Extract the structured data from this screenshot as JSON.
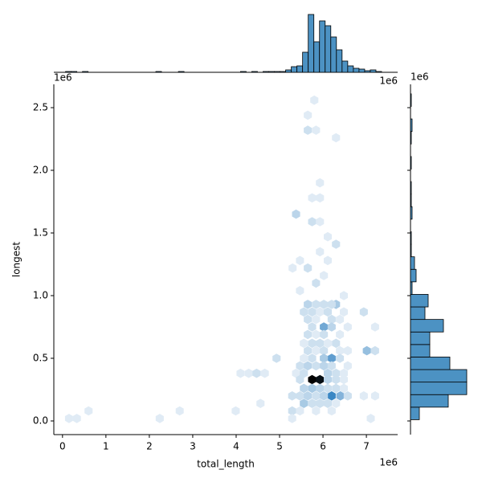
{
  "chart_data": {
    "type": "hexbin",
    "xlabel": "total_length",
    "ylabel": "longest",
    "x_offset": "1e6",
    "y_offset": "1e6",
    "top_offset": "1e6",
    "right_offset": "1e6",
    "xlim": [
      -0.2,
      7.72
    ],
    "ylim": [
      -0.109,
      2.686
    ],
    "xticks": [
      0,
      1,
      2,
      3,
      4,
      5,
      6,
      7
    ],
    "yticks": [
      {
        "value": 0,
        "label": "0.0"
      },
      {
        "value": 0.5,
        "label": "0.5"
      },
      {
        "value": 1.0,
        "label": "1.0"
      },
      {
        "value": 1.5,
        "label": "1.5"
      },
      {
        "value": 2.0,
        "label": "2.0"
      },
      {
        "value": 2.5,
        "label": "2.5"
      }
    ],
    "color": "#4c92c3",
    "cmap": [
      "#f2f6fa",
      "#3a87c4",
      "#000000"
    ],
    "count_max": 20,
    "hexes": [
      {
        "x": 5.75,
        "y": 0.33,
        "count": 20
      },
      {
        "x": 5.93,
        "y": 0.33,
        "count": 19
      },
      {
        "x": 6.2,
        "y": 0.2,
        "count": 10
      },
      {
        "x": 6.4,
        "y": 0.2,
        "count": 6
      },
      {
        "x": 6.2,
        "y": 0.5,
        "count": 8
      },
      {
        "x": 6.02,
        "y": 0.75,
        "count": 7
      },
      {
        "x": 6.3,
        "y": 0.93,
        "count": 4
      },
      {
        "x": 5.65,
        "y": 0.93,
        "count": 3
      },
      {
        "x": 5.84,
        "y": 0.93,
        "count": 2
      },
      {
        "x": 6.02,
        "y": 0.93,
        "count": 2
      },
      {
        "x": 6.2,
        "y": 0.93,
        "count": 2
      },
      {
        "x": 5.56,
        "y": 0.87,
        "count": 2
      },
      {
        "x": 5.75,
        "y": 0.87,
        "count": 2
      },
      {
        "x": 5.93,
        "y": 0.87,
        "count": 1
      },
      {
        "x": 6.11,
        "y": 0.87,
        "count": 2
      },
      {
        "x": 6.48,
        "y": 0.87,
        "count": 1
      },
      {
        "x": 5.65,
        "y": 0.81,
        "count": 2
      },
      {
        "x": 5.84,
        "y": 0.81,
        "count": 1
      },
      {
        "x": 6.2,
        "y": 0.81,
        "count": 2
      },
      {
        "x": 6.39,
        "y": 0.81,
        "count": 1
      },
      {
        "x": 5.75,
        "y": 0.75,
        "count": 2
      },
      {
        "x": 6.2,
        "y": 0.75,
        "count": 3
      },
      {
        "x": 6.57,
        "y": 0.75,
        "count": 1
      },
      {
        "x": 5.65,
        "y": 0.69,
        "count": 2
      },
      {
        "x": 5.84,
        "y": 0.69,
        "count": 1
      },
      {
        "x": 6.02,
        "y": 0.69,
        "count": 2
      },
      {
        "x": 6.39,
        "y": 0.69,
        "count": 1
      },
      {
        "x": 5.56,
        "y": 0.62,
        "count": 1
      },
      {
        "x": 5.75,
        "y": 0.62,
        "count": 2
      },
      {
        "x": 5.93,
        "y": 0.62,
        "count": 2
      },
      {
        "x": 6.11,
        "y": 0.62,
        "count": 1
      },
      {
        "x": 6.3,
        "y": 0.62,
        "count": 2
      },
      {
        "x": 5.65,
        "y": 0.56,
        "count": 2
      },
      {
        "x": 5.84,
        "y": 0.56,
        "count": 1
      },
      {
        "x": 6.02,
        "y": 0.56,
        "count": 2
      },
      {
        "x": 6.39,
        "y": 0.56,
        "count": 1
      },
      {
        "x": 6.57,
        "y": 0.56,
        "count": 1
      },
      {
        "x": 5.56,
        "y": 0.5,
        "count": 1
      },
      {
        "x": 5.75,
        "y": 0.5,
        "count": 2
      },
      {
        "x": 6.02,
        "y": 0.5,
        "count": 4
      },
      {
        "x": 6.39,
        "y": 0.5,
        "count": 2
      },
      {
        "x": 4.93,
        "y": 0.5,
        "count": 2
      },
      {
        "x": 5.47,
        "y": 0.44,
        "count": 2
      },
      {
        "x": 5.65,
        "y": 0.44,
        "count": 3
      },
      {
        "x": 5.84,
        "y": 0.44,
        "count": 2
      },
      {
        "x": 6.02,
        "y": 0.44,
        "count": 3
      },
      {
        "x": 6.2,
        "y": 0.44,
        "count": 2
      },
      {
        "x": 6.57,
        "y": 0.44,
        "count": 1
      },
      {
        "x": 5.38,
        "y": 0.38,
        "count": 1
      },
      {
        "x": 5.56,
        "y": 0.38,
        "count": 2
      },
      {
        "x": 6.11,
        "y": 0.38,
        "count": 3
      },
      {
        "x": 6.3,
        "y": 0.38,
        "count": 2
      },
      {
        "x": 6.48,
        "y": 0.38,
        "count": 1
      },
      {
        "x": 5.47,
        "y": 0.33,
        "count": 2
      },
      {
        "x": 6.11,
        "y": 0.33,
        "count": 3
      },
      {
        "x": 6.3,
        "y": 0.33,
        "count": 2
      },
      {
        "x": 6.48,
        "y": 0.33,
        "count": 1
      },
      {
        "x": 5.56,
        "y": 0.26,
        "count": 3
      },
      {
        "x": 5.75,
        "y": 0.26,
        "count": 4
      },
      {
        "x": 5.93,
        "y": 0.26,
        "count": 3
      },
      {
        "x": 6.11,
        "y": 0.26,
        "count": 2
      },
      {
        "x": 6.3,
        "y": 0.26,
        "count": 2
      },
      {
        "x": 6.48,
        "y": 0.26,
        "count": 1
      },
      {
        "x": 5.29,
        "y": 0.2,
        "count": 2
      },
      {
        "x": 5.47,
        "y": 0.2,
        "count": 2
      },
      {
        "x": 5.65,
        "y": 0.2,
        "count": 3
      },
      {
        "x": 5.84,
        "y": 0.2,
        "count": 2
      },
      {
        "x": 6.02,
        "y": 0.2,
        "count": 3
      },
      {
        "x": 6.57,
        "y": 0.2,
        "count": 2
      },
      {
        "x": 6.94,
        "y": 0.2,
        "count": 1
      },
      {
        "x": 7.2,
        "y": 0.2,
        "count": 1
      },
      {
        "x": 5.56,
        "y": 0.14,
        "count": 4
      },
      {
        "x": 5.75,
        "y": 0.14,
        "count": 2
      },
      {
        "x": 5.93,
        "y": 0.14,
        "count": 2
      },
      {
        "x": 6.11,
        "y": 0.14,
        "count": 2
      },
      {
        "x": 6.3,
        "y": 0.14,
        "count": 1
      },
      {
        "x": 4.56,
        "y": 0.14,
        "count": 1
      },
      {
        "x": 5.29,
        "y": 0.08,
        "count": 2
      },
      {
        "x": 5.47,
        "y": 0.08,
        "count": 1
      },
      {
        "x": 5.84,
        "y": 0.08,
        "count": 1
      },
      {
        "x": 6.2,
        "y": 0.08,
        "count": 1
      },
      {
        "x": 3.99,
        "y": 0.08,
        "count": 1
      },
      {
        "x": 2.7,
        "y": 0.08,
        "count": 1
      },
      {
        "x": 0.6,
        "y": 0.08,
        "count": 1
      },
      {
        "x": 5.29,
        "y": 0.02,
        "count": 1
      },
      {
        "x": 7.1,
        "y": 0.02,
        "count": 1
      },
      {
        "x": 2.24,
        "y": 0.02,
        "count": 1
      },
      {
        "x": 0.15,
        "y": 0.02,
        "count": 1
      },
      {
        "x": 0.33,
        "y": 0.02,
        "count": 1
      },
      {
        "x": 4.1,
        "y": 0.38,
        "count": 1
      },
      {
        "x": 4.29,
        "y": 0.38,
        "count": 1
      },
      {
        "x": 4.47,
        "y": 0.38,
        "count": 2
      },
      {
        "x": 4.66,
        "y": 0.38,
        "count": 1
      },
      {
        "x": 7.01,
        "y": 0.56,
        "count": 5
      },
      {
        "x": 7.2,
        "y": 0.56,
        "count": 2
      },
      {
        "x": 6.94,
        "y": 0.87,
        "count": 2
      },
      {
        "x": 7.2,
        "y": 0.75,
        "count": 1
      },
      {
        "x": 5.38,
        "y": 1.65,
        "count": 3
      },
      {
        "x": 5.3,
        "y": 1.22,
        "count": 1
      },
      {
        "x": 5.8,
        "y": 2.56,
        "count": 1
      },
      {
        "x": 5.65,
        "y": 2.44,
        "count": 1
      },
      {
        "x": 5.65,
        "y": 2.32,
        "count": 2
      },
      {
        "x": 5.84,
        "y": 2.32,
        "count": 1
      },
      {
        "x": 6.3,
        "y": 2.26,
        "count": 1
      },
      {
        "x": 5.93,
        "y": 1.9,
        "count": 1
      },
      {
        "x": 5.75,
        "y": 1.78,
        "count": 1
      },
      {
        "x": 5.93,
        "y": 1.78,
        "count": 1
      },
      {
        "x": 5.75,
        "y": 1.59,
        "count": 2
      },
      {
        "x": 5.93,
        "y": 1.59,
        "count": 1
      },
      {
        "x": 6.11,
        "y": 1.47,
        "count": 1
      },
      {
        "x": 5.93,
        "y": 1.35,
        "count": 1
      },
      {
        "x": 6.3,
        "y": 1.41,
        "count": 2
      },
      {
        "x": 5.65,
        "y": 1.22,
        "count": 2
      },
      {
        "x": 5.47,
        "y": 1.28,
        "count": 1
      },
      {
        "x": 6.11,
        "y": 1.28,
        "count": 1
      },
      {
        "x": 5.84,
        "y": 1.1,
        "count": 2
      },
      {
        "x": 5.47,
        "y": 1.04,
        "count": 1
      },
      {
        "x": 6.02,
        "y": 1.16,
        "count": 1
      },
      {
        "x": 6.48,
        "y": 1.0,
        "count": 1
      }
    ],
    "top_hist": {
      "bins": [
        0.07,
        0.2,
        0.33,
        0.46,
        0.59,
        0.72,
        0.85,
        0.98,
        1.11,
        1.24,
        1.37,
        1.5,
        1.63,
        1.76,
        1.89,
        2.02,
        2.15,
        2.28,
        2.41,
        2.54,
        2.67,
        2.8,
        2.93,
        3.06,
        3.19,
        3.32,
        3.45,
        3.58,
        3.71,
        3.84,
        3.97,
        4.1,
        4.23,
        4.36,
        4.49,
        4.62,
        4.75,
        4.88,
        5.01,
        5.14,
        5.27,
        5.4,
        5.53,
        5.66,
        5.79,
        5.92,
        6.05,
        6.18,
        6.31,
        6.44,
        6.57,
        6.7,
        6.83,
        6.96,
        7.09,
        7.22,
        7.35
      ],
      "counts": [
        1,
        1,
        0,
        1,
        0,
        0,
        0,
        0,
        0,
        0,
        0,
        0,
        0,
        0,
        0,
        0,
        1,
        0,
        0,
        0,
        1,
        0,
        0,
        0,
        0,
        0,
        0,
        0,
        0,
        0,
        0,
        1,
        0,
        1,
        0,
        1,
        1,
        1,
        1,
        3,
        7,
        8,
        25,
        72,
        38,
        64,
        58,
        44,
        28,
        14,
        8,
        5,
        4,
        2,
        3,
        1
      ],
      "ylim": [
        0,
        74
      ]
    },
    "right_hist": {
      "bins": [
        0.01,
        0.11,
        0.21,
        0.31,
        0.41,
        0.51,
        0.61,
        0.71,
        0.81,
        0.91,
        1.01,
        1.11,
        1.21,
        1.31,
        1.41,
        1.51,
        1.61,
        1.71,
        1.81,
        1.91,
        2.01,
        2.11,
        2.21,
        2.31,
        2.41,
        2.51,
        2.61
      ],
      "counts": [
        11,
        47,
        70,
        70,
        49,
        24,
        24,
        41,
        18,
        22,
        2,
        7,
        5,
        1,
        1,
        0,
        2,
        1,
        1,
        0,
        1,
        0,
        1,
        2,
        0,
        1
      ],
      "xlim": [
        0,
        74
      ]
    }
  }
}
